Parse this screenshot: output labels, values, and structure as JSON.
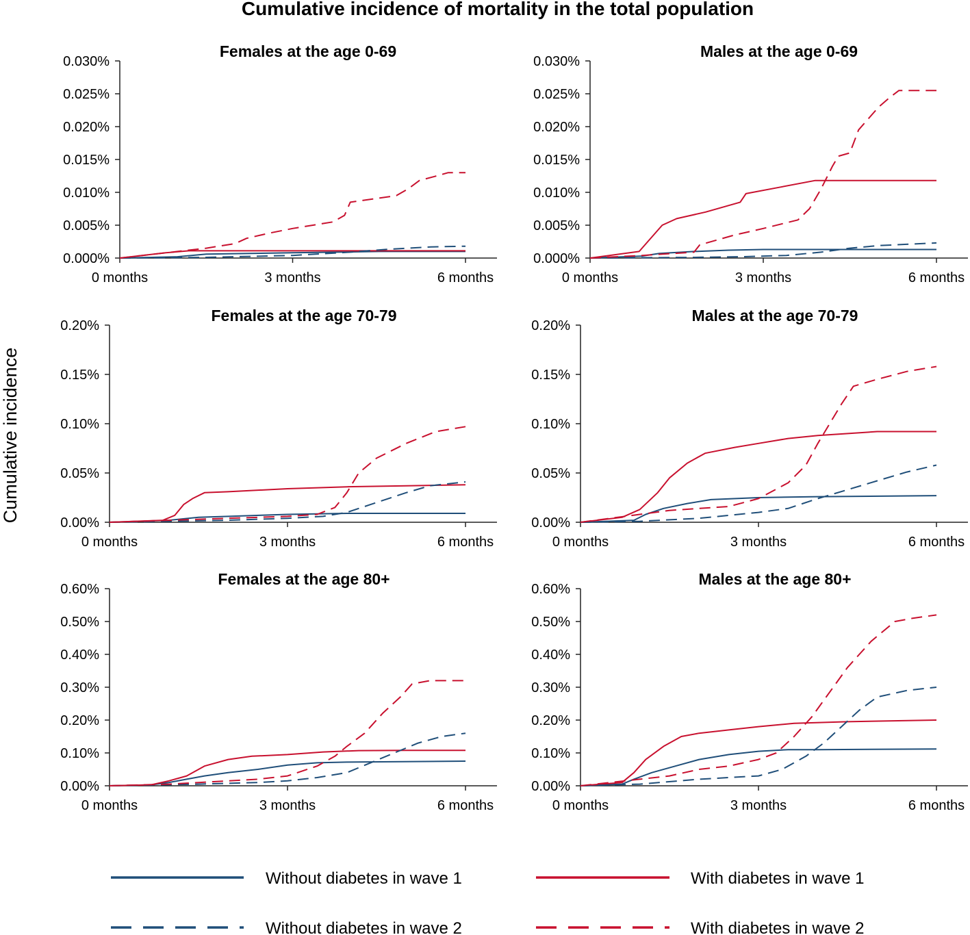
{
  "colors": {
    "without": "#1f4e79",
    "with": "#c8102e",
    "axis": "#222222"
  },
  "chart_data": {
    "type": "line",
    "title": "Cumulative incidence of mortality in the total population",
    "ylabel": "Cumulative incidence",
    "x_ticks": [
      "0 months",
      "3 months",
      "6 months"
    ],
    "legend": [
      {
        "key": "w1_without",
        "label": "Without diabetes in wave 1",
        "color": "without",
        "dashed": false
      },
      {
        "key": "w1_with",
        "label": "With diabetes in wave 1",
        "color": "with",
        "dashed": false
      },
      {
        "key": "w2_without",
        "label": "Without diabetes in wave 2",
        "color": "without",
        "dashed": true
      },
      {
        "key": "w2_with",
        "label": "With diabetes in wave 2",
        "color": "with",
        "dashed": true
      }
    ],
    "panels": [
      {
        "title": "Females at the age 0-69",
        "xlim": [
          0,
          6
        ],
        "ylim": [
          0,
          0.03
        ],
        "y_ticks": [
          0,
          0.005,
          0.01,
          0.015,
          0.02,
          0.025,
          0.03
        ],
        "y_tick_labels": [
          "0.000%",
          "0.005%",
          "0.010%",
          "0.015%",
          "0.020%",
          "0.025%",
          "0.030%"
        ],
        "series": [
          {
            "key": "w1_without",
            "x": [
              0,
              1.0,
              1.5,
              3.0,
              4.5,
              6.0
            ],
            "y": [
              0,
              0.0002,
              0.0006,
              0.0008,
              0.001,
              0.001
            ]
          },
          {
            "key": "w1_with",
            "x": [
              0,
              0.8,
              1.2,
              2.0,
              3.0,
              6.0
            ],
            "y": [
              0,
              0.0008,
              0.0011,
              0.0011,
              0.0011,
              0.0011
            ]
          },
          {
            "key": "w2_without",
            "x": [
              0,
              1.5,
              3.0,
              4.0,
              4.6,
              5.4,
              6.0
            ],
            "y": [
              0,
              0.0001,
              0.0004,
              0.0009,
              0.0013,
              0.0017,
              0.0018
            ]
          },
          {
            "key": "w2_with",
            "x": [
              0,
              0.8,
              1.5,
              2.0,
              2.2,
              2.6,
              3.0,
              3.7,
              3.9,
              4.0,
              4.8,
              5.0,
              5.2,
              5.5,
              5.7,
              6.0
            ],
            "y": [
              0,
              0.0008,
              0.0015,
              0.0022,
              0.003,
              0.0038,
              0.0045,
              0.0055,
              0.0065,
              0.0085,
              0.0095,
              0.0105,
              0.0118,
              0.0125,
              0.013,
              0.013
            ]
          }
        ]
      },
      {
        "title": "Males at the age 0-69",
        "xlim": [
          0,
          6
        ],
        "ylim": [
          0,
          0.03
        ],
        "y_ticks": [
          0,
          0.005,
          0.01,
          0.015,
          0.02,
          0.025,
          0.03
        ],
        "y_tick_labels": [
          "0.000%",
          "0.005%",
          "0.010%",
          "0.015%",
          "0.020%",
          "0.025%",
          "0.030%"
        ],
        "series": [
          {
            "key": "w1_without",
            "x": [
              0,
              0.9,
              1.2,
              1.8,
              2.4,
              3.0,
              6.0
            ],
            "y": [
              0,
              0.0003,
              0.0007,
              0.001,
              0.0012,
              0.0013,
              0.0013
            ]
          },
          {
            "key": "w1_with",
            "x": [
              0,
              0.85,
              1.0,
              1.25,
              1.5,
              2.0,
              2.6,
              2.7,
              3.3,
              3.9,
              6.0
            ],
            "y": [
              0,
              0.001,
              0.0025,
              0.005,
              0.006,
              0.007,
              0.0085,
              0.0098,
              0.0108,
              0.0118,
              0.0118
            ]
          },
          {
            "key": "w2_without",
            "x": [
              0,
              1.8,
              2.6,
              3.4,
              4.0,
              4.5,
              5.0,
              6.0
            ],
            "y": [
              0,
              0.0001,
              0.0002,
              0.0004,
              0.0009,
              0.0015,
              0.0019,
              0.0023
            ]
          },
          {
            "key": "w2_with",
            "x": [
              0,
              0.9,
              1.8,
              1.9,
              2.5,
              3.0,
              3.6,
              3.8,
              4.0,
              4.2,
              4.3,
              4.5,
              4.65,
              4.8,
              5.0,
              5.2,
              5.35,
              5.5,
              6.0
            ],
            "y": [
              0,
              0.0004,
              0.0009,
              0.002,
              0.0035,
              0.0045,
              0.0058,
              0.0075,
              0.0105,
              0.014,
              0.0155,
              0.016,
              0.0195,
              0.021,
              0.023,
              0.0245,
              0.0255,
              0.0255,
              0.0255
            ]
          }
        ]
      },
      {
        "title": "Females at the age 70-79",
        "xlim": [
          0,
          6
        ],
        "ylim": [
          0,
          0.2
        ],
        "y_ticks": [
          0,
          0.05,
          0.1,
          0.15,
          0.2
        ],
        "y_tick_labels": [
          "0.00%",
          "0.05%",
          "0.10%",
          "0.15%",
          "0.20%"
        ],
        "series": [
          {
            "key": "w1_without",
            "x": [
              0,
              1.0,
              1.5,
              2.0,
              3.0,
              4.0,
              6.0
            ],
            "y": [
              0,
              0.002,
              0.005,
              0.006,
              0.008,
              0.009,
              0.009
            ]
          },
          {
            "key": "w1_with",
            "x": [
              0,
              0.9,
              1.1,
              1.25,
              1.4,
              1.6,
              2.0,
              3.0,
              4.0,
              5.0,
              6.0
            ],
            "y": [
              0,
              0.002,
              0.007,
              0.018,
              0.024,
              0.03,
              0.031,
              0.034,
              0.036,
              0.037,
              0.038
            ]
          },
          {
            "key": "w2_without",
            "x": [
              0,
              1.0,
              2.0,
              3.0,
              3.6,
              4.0,
              4.4,
              5.0,
              5.4,
              6.0
            ],
            "y": [
              0,
              0.001,
              0.002,
              0.004,
              0.006,
              0.01,
              0.018,
              0.03,
              0.037,
              0.041
            ]
          },
          {
            "key": "w2_with",
            "x": [
              0,
              1.0,
              2.0,
              3.0,
              3.5,
              3.8,
              4.0,
              4.2,
              4.5,
              5.0,
              5.5,
              6.0
            ],
            "y": [
              0,
              0.002,
              0.004,
              0.006,
              0.008,
              0.015,
              0.03,
              0.05,
              0.065,
              0.08,
              0.092,
              0.097
            ]
          }
        ]
      },
      {
        "title": "Males at the age 70-79",
        "xlim": [
          0,
          6
        ],
        "ylim": [
          0,
          0.2
        ],
        "y_ticks": [
          0,
          0.05,
          0.1,
          0.15,
          0.2
        ],
        "y_tick_labels": [
          "0.00%",
          "0.05%",
          "0.10%",
          "0.15%",
          "0.20%"
        ],
        "series": [
          {
            "key": "w1_without",
            "x": [
              0,
              0.9,
              1.1,
              1.4,
              1.8,
              2.2,
              3.0,
              4.0,
              6.0
            ],
            "y": [
              0,
              0.002,
              0.008,
              0.014,
              0.019,
              0.023,
              0.025,
              0.026,
              0.027
            ]
          },
          {
            "key": "w1_with",
            "x": [
              0,
              0.7,
              1.0,
              1.3,
              1.5,
              1.8,
              2.1,
              2.6,
              3.0,
              3.5,
              4.0,
              5.0,
              6.0
            ],
            "y": [
              0,
              0.005,
              0.013,
              0.03,
              0.045,
              0.06,
              0.07,
              0.076,
              0.08,
              0.085,
              0.088,
              0.092,
              0.092
            ]
          },
          {
            "key": "w2_without",
            "x": [
              0,
              1.0,
              2.0,
              2.5,
              3.0,
              3.5,
              4.0,
              4.5,
              5.0,
              5.5,
              6.0
            ],
            "y": [
              0,
              0.001,
              0.004,
              0.007,
              0.01,
              0.014,
              0.024,
              0.033,
              0.042,
              0.051,
              0.058
            ]
          },
          {
            "key": "w2_with",
            "x": [
              0,
              1.0,
              1.5,
              2.0,
              2.5,
              3.0,
              3.5,
              3.8,
              4.0,
              4.2,
              4.4,
              4.6,
              5.0,
              5.5,
              6.0
            ],
            "y": [
              0,
              0.008,
              0.012,
              0.014,
              0.016,
              0.024,
              0.04,
              0.058,
              0.08,
              0.1,
              0.12,
              0.138,
              0.145,
              0.153,
              0.158
            ]
          }
        ]
      },
      {
        "title": "Females at the age 80+",
        "xlim": [
          0,
          6
        ],
        "ylim": [
          0,
          0.006
        ],
        "y_ticks": [
          0,
          0.001,
          0.002,
          0.003,
          0.004,
          0.005,
          0.006
        ],
        "y_tick_labels": [
          "0.00%",
          "0.10%",
          "0.20%",
          "0.30%",
          "0.40%",
          "0.50%",
          "0.60%"
        ],
        "series": [
          {
            "key": "w1_without",
            "x": [
              0,
              0.7,
              1.0,
              1.3,
              1.6,
              2.0,
              2.5,
              3.0,
              3.5,
              4.0,
              6.0
            ],
            "y": [
              0,
              3e-05,
              0.0001,
              0.0002,
              0.0003,
              0.0004,
              0.0005,
              0.00063,
              0.0007,
              0.00072,
              0.00075
            ]
          },
          {
            "key": "w1_with",
            "x": [
              0,
              0.7,
              1.0,
              1.3,
              1.6,
              2.0,
              2.4,
              3.0,
              3.6,
              4.2,
              5.0,
              6.0
            ],
            "y": [
              0,
              3e-05,
              0.00015,
              0.0003,
              0.0006,
              0.0008,
              0.0009,
              0.00095,
              0.00103,
              0.00107,
              0.00108,
              0.00108
            ]
          },
          {
            "key": "w2_without",
            "x": [
              0,
              1.5,
              2.5,
              3.0,
              3.5,
              4.0,
              4.4,
              4.8,
              5.2,
              5.6,
              6.0
            ],
            "y": [
              0,
              5e-05,
              0.0001,
              0.00015,
              0.00025,
              0.0004,
              0.0007,
              0.001,
              0.0013,
              0.0015,
              0.0016
            ]
          },
          {
            "key": "w2_with",
            "x": [
              0,
              1.0,
              1.5,
              2.5,
              3.0,
              3.5,
              3.8,
              4.0,
              4.3,
              4.6,
              4.9,
              5.1,
              5.4,
              6.0
            ],
            "y": [
              0,
              5e-05,
              0.0001,
              0.0002,
              0.0003,
              0.0006,
              0.0009,
              0.0012,
              0.0016,
              0.0022,
              0.0027,
              0.0031,
              0.0032,
              0.0032
            ]
          }
        ]
      },
      {
        "title": "Males at the age 80+",
        "xlim": [
          0,
          6
        ],
        "ylim": [
          0,
          0.006
        ],
        "y_ticks": [
          0,
          0.001,
          0.002,
          0.003,
          0.004,
          0.005,
          0.006
        ],
        "y_tick_labels": [
          "0.00%",
          "0.10%",
          "0.20%",
          "0.30%",
          "0.40%",
          "0.50%",
          "0.60%"
        ],
        "series": [
          {
            "key": "w1_without",
            "x": [
              0,
              0.7,
              0.9,
              1.2,
              1.6,
              2.0,
              2.5,
              3.0,
              3.5,
              4.0,
              6.0
            ],
            "y": [
              0,
              5e-05,
              0.0002,
              0.0004,
              0.0006,
              0.0008,
              0.00095,
              0.00105,
              0.0011,
              0.0011,
              0.00112
            ]
          },
          {
            "key": "w1_with",
            "x": [
              0,
              0.7,
              0.9,
              1.1,
              1.4,
              1.7,
              2.0,
              2.5,
              3.0,
              3.6,
              4.5,
              6.0
            ],
            "y": [
              0,
              0.0001,
              0.0004,
              0.0008,
              0.0012,
              0.0015,
              0.0016,
              0.0017,
              0.0018,
              0.0019,
              0.00195,
              0.002
            ]
          },
          {
            "key": "w2_without",
            "x": [
              0,
              1.0,
              2.0,
              3.0,
              3.4,
              3.8,
              4.1,
              4.4,
              4.7,
              5.0,
              5.5,
              6.0
            ],
            "y": [
              0,
              5e-05,
              0.0002,
              0.0003,
              0.0005,
              0.0009,
              0.0013,
              0.0018,
              0.0023,
              0.0027,
              0.0029,
              0.003
            ]
          },
          {
            "key": "w2_with",
            "x": [
              0,
              1.0,
              1.5,
              2.0,
              2.5,
              3.0,
              3.3,
              3.6,
              3.9,
              4.1,
              4.3,
              4.5,
              4.7,
              4.9,
              5.1,
              5.3,
              5.6,
              6.0
            ],
            "y": [
              0,
              0.0002,
              0.0003,
              0.0005,
              0.0006,
              0.0008,
              0.001,
              0.0015,
              0.0021,
              0.0026,
              0.0031,
              0.0036,
              0.004,
              0.0044,
              0.0047,
              0.005,
              0.0051,
              0.0052
            ]
          }
        ]
      }
    ]
  }
}
